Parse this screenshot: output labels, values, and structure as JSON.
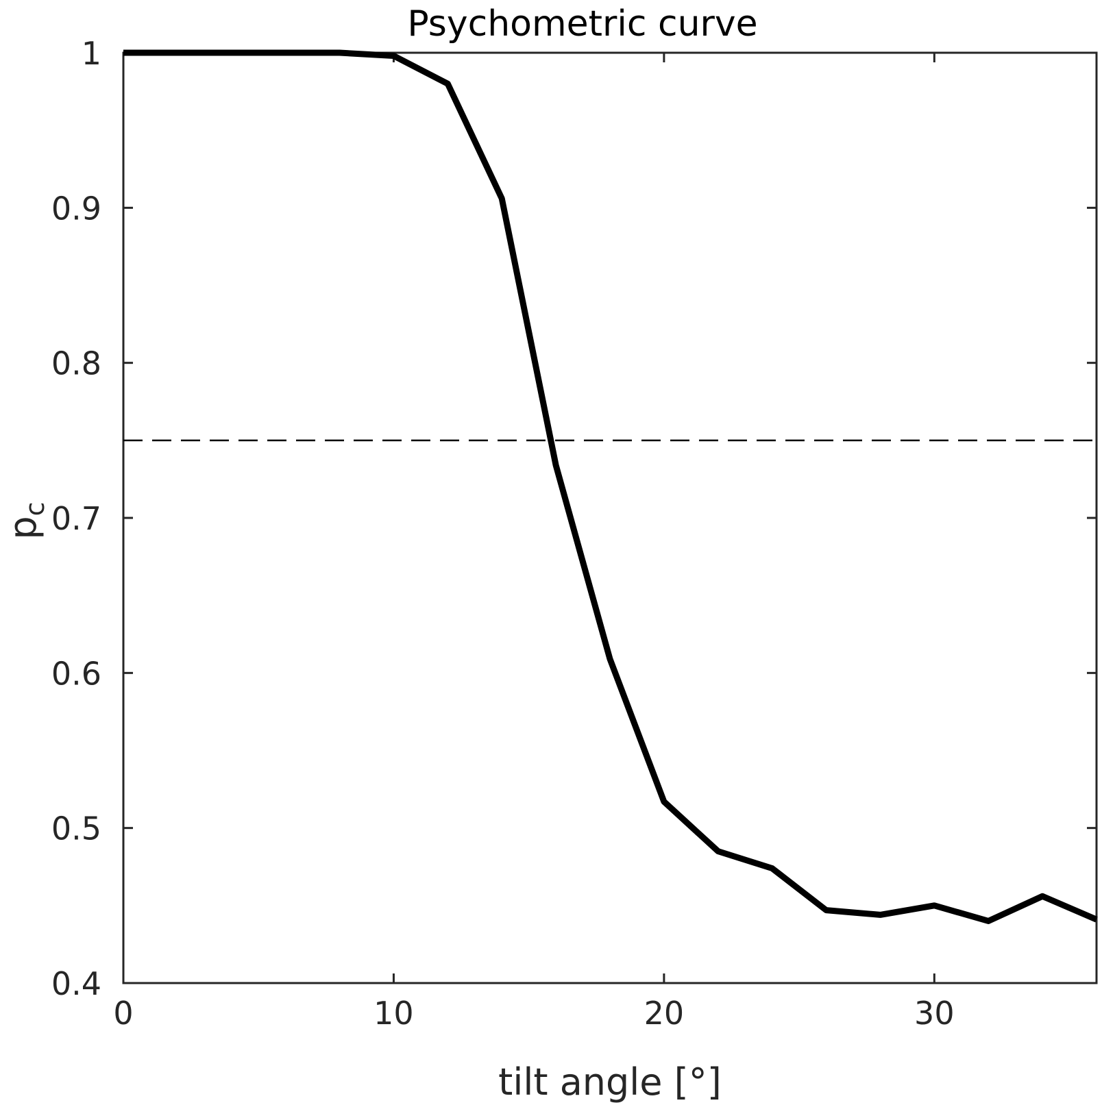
{
  "chart_data": {
    "type": "line",
    "title": "Psychometric curve",
    "xlabel": "tilt angle [°]",
    "ylabel": "p",
    "ylabel_subscript": "c",
    "xlim": [
      0,
      36
    ],
    "ylim": [
      0.4,
      1
    ],
    "xticks": [
      "0",
      "10",
      "20",
      "30"
    ],
    "yticks": [
      "0.4",
      "0.5",
      "0.6",
      "0.7",
      "0.8",
      "0.9",
      "1"
    ],
    "grid": false,
    "series": [
      {
        "color": "#000000",
        "x": [
          0,
          2,
          4,
          6,
          8,
          10,
          12,
          14,
          16,
          18,
          20,
          22,
          24,
          26,
          28,
          30,
          32,
          34,
          36
        ],
        "y": [
          1.0,
          1.0,
          1.0,
          1.0,
          1.0,
          0.998,
          0.98,
          0.906,
          0.734,
          0.609,
          0.517,
          0.485,
          0.474,
          0.447,
          0.444,
          0.45,
          0.44,
          0.456,
          0.441
        ]
      }
    ],
    "reference_line": {
      "y": 0.75,
      "style": "dashed",
      "color": "#000000"
    }
  }
}
